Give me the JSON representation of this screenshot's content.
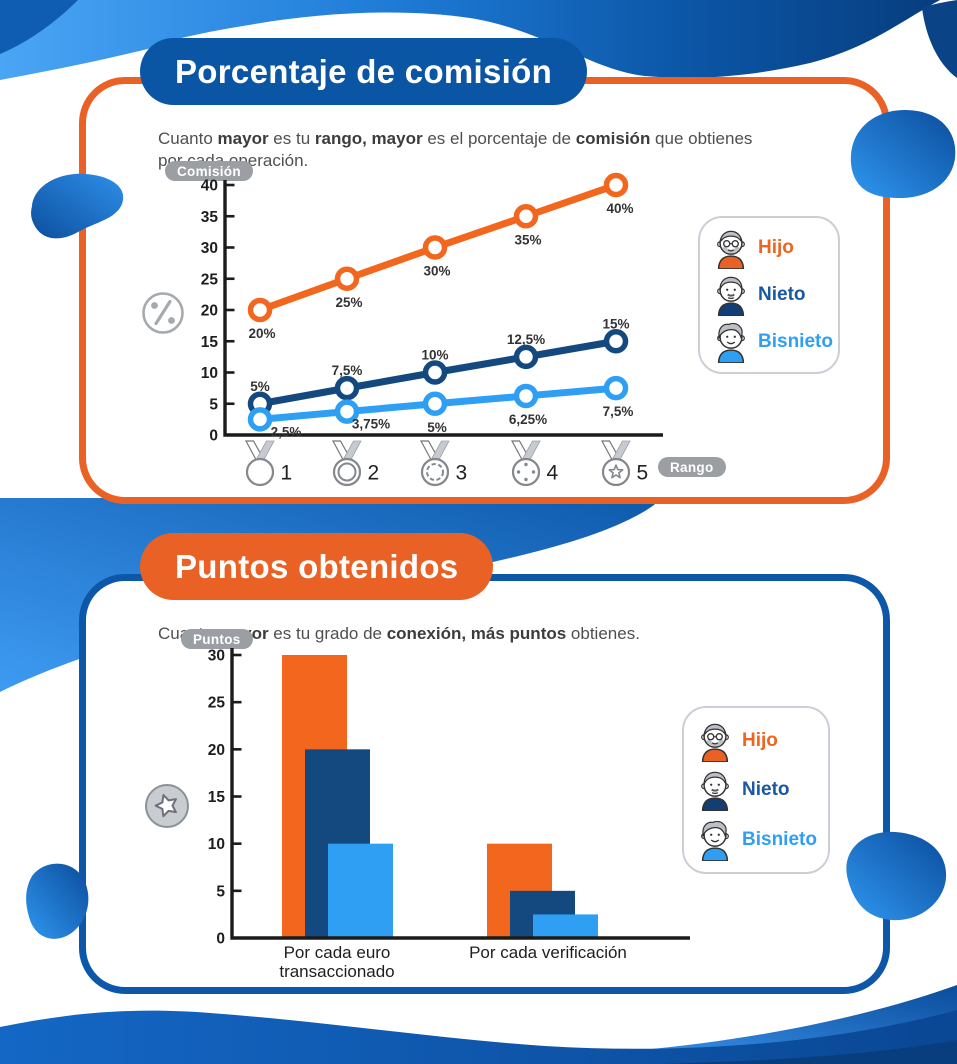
{
  "colors": {
    "orange": "#EA6126",
    "chart_orange": "#F2661D",
    "navy": "#14497F",
    "light_blue": "#2E9FF3",
    "title_pill_blue": "#0B55A5",
    "card_blue_border": "#0D57A8",
    "gray_pill": "#9B9FA4"
  },
  "section1": {
    "title": "Porcentaje de comisión",
    "subtitle_segments": [
      {
        "t": "Cuanto ",
        "b": false
      },
      {
        "t": "mayor",
        "b": true
      },
      {
        "t": " es tu ",
        "b": false
      },
      {
        "t": "rango, mayor",
        "b": true
      },
      {
        "t": " es el porcentaje de ",
        "b": false
      },
      {
        "t": "comisión",
        "b": true
      },
      {
        "t": " que obtienes por cada operación.",
        "b": false
      }
    ],
    "ylabel_pill": "Comisión",
    "xlabel_pill": "Rango"
  },
  "section2": {
    "title": "Puntos obtenidos",
    "subtitle_segments": [
      {
        "t": "Cuanto ",
        "b": false
      },
      {
        "t": "mayor",
        "b": true
      },
      {
        "t": " es tu grado de ",
        "b": false
      },
      {
        "t": "conexión, más puntos",
        "b": true
      },
      {
        "t": " obtienes.",
        "b": false
      }
    ],
    "ylabel_pill": "Puntos"
  },
  "legend": {
    "items": [
      {
        "label": "Hijo",
        "color": "#EE651F",
        "shirt": "#EA6126",
        "avatar": "hijo"
      },
      {
        "label": "Nieto",
        "color": "#1859A4",
        "shirt": "#123E73",
        "avatar": "nieto"
      },
      {
        "label": "Bisnieto",
        "color": "#2E9FF3",
        "shirt": "#2E9FF3",
        "avatar": "bisnieto"
      }
    ]
  },
  "chart_data": [
    {
      "type": "line",
      "title": "Porcentaje de comisión",
      "ylabel": "Comisión",
      "xlabel": "Rango",
      "ylim": [
        0,
        40
      ],
      "yticks": [
        0,
        5,
        10,
        15,
        20,
        25,
        30,
        35,
        40
      ],
      "x_labels": [
        "1",
        "2",
        "3",
        "4",
        "5"
      ],
      "rank_icons": [
        "medal-plain-icon",
        "medal-ring-icon",
        "medal-scallop-icon",
        "medal-dots-icon",
        "medal-star-icon"
      ],
      "series": [
        {
          "name": "Hijo",
          "color": "#F2661D",
          "values": [
            20,
            25,
            30,
            35,
            40
          ],
          "labels": [
            "20%",
            "25%",
            "30%",
            "35%",
            "40%"
          ],
          "label_pos": "below"
        },
        {
          "name": "Nieto",
          "color": "#14497F",
          "values": [
            5,
            7.5,
            10,
            12.5,
            15
          ],
          "labels": [
            "5%",
            "7,5%",
            "10%",
            "12,5%",
            "15%"
          ],
          "label_pos": "above"
        },
        {
          "name": "Bisnieto",
          "color": "#2E9FF3",
          "values": [
            2.5,
            3.75,
            5,
            6.25,
            7.5
          ],
          "labels": [
            "2,5%",
            "3,75%",
            "5%",
            "6,25%",
            "7,5%"
          ],
          "label_pos": "below"
        }
      ]
    },
    {
      "type": "bar",
      "title": "Puntos obtenidos",
      "ylabel": "Puntos",
      "ylim": [
        0,
        30
      ],
      "yticks": [
        0,
        5,
        10,
        15,
        20,
        25,
        30
      ],
      "categories": [
        [
          "Por cada euro",
          "transaccionado"
        ],
        [
          "Por cada verificación"
        ]
      ],
      "legend_position": "right",
      "series": [
        {
          "name": "Hijo",
          "color": "#F2661D",
          "values": [
            30,
            10
          ]
        },
        {
          "name": "Nieto",
          "color": "#14497F",
          "values": [
            20,
            5
          ]
        },
        {
          "name": "Bisnieto",
          "color": "#2E9FF3",
          "values": [
            10,
            2.5
          ]
        }
      ]
    }
  ]
}
